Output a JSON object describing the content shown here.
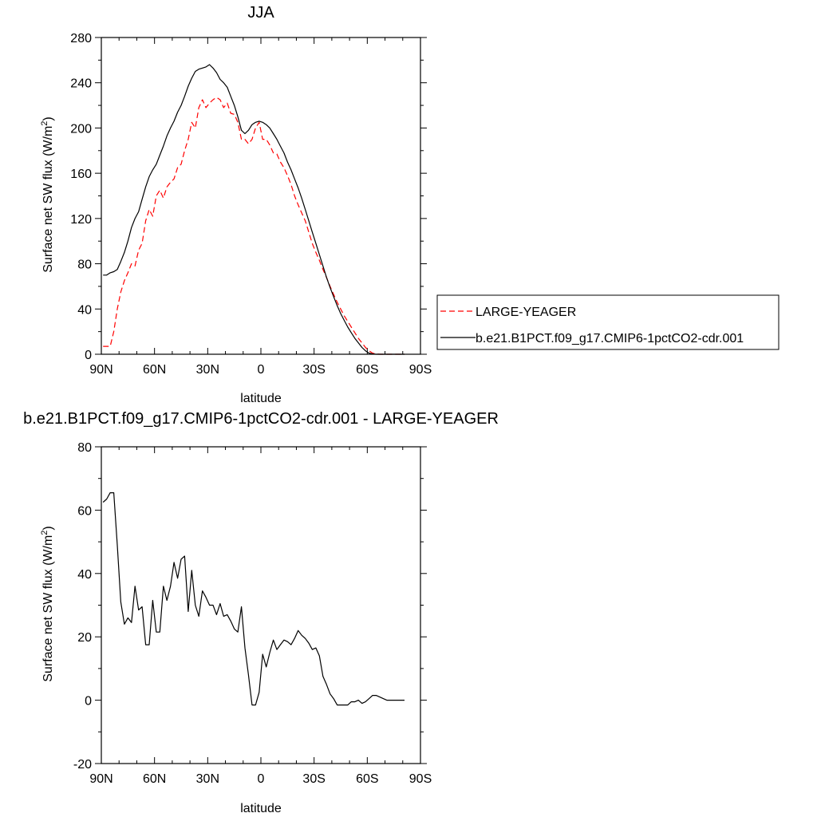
{
  "chart_data": [
    {
      "type": "line",
      "title": "JJA",
      "xlabel": "latitude",
      "ylabel": "Surface net SW flux (W/m",
      "ylabel_sup": "2",
      "ylabel_end": ")",
      "xlim": [
        90,
        -90
      ],
      "ylim": [
        0,
        280
      ],
      "x_ticks": [
        {
          "value": 90,
          "label": "90N"
        },
        {
          "value": 60,
          "label": "60N"
        },
        {
          "value": 30,
          "label": "30N"
        },
        {
          "value": 0,
          "label": "0"
        },
        {
          "value": -30,
          "label": "30S"
        },
        {
          "value": -60,
          "label": "60S"
        },
        {
          "value": -90,
          "label": "90S"
        }
      ],
      "y_ticks": [
        0,
        40,
        80,
        120,
        160,
        200,
        240,
        280
      ],
      "legend_position": "right",
      "series": [
        {
          "name": "LARGE-YEAGER",
          "color": "#ff0000",
          "dash": "dashed",
          "x": [
            89,
            85,
            83,
            81,
            79,
            77,
            75,
            73,
            71,
            69,
            67,
            65,
            63,
            61,
            59,
            57,
            55,
            53,
            51,
            49,
            47,
            45,
            43,
            41,
            39,
            37,
            35,
            33,
            31,
            29,
            27,
            25,
            23,
            21,
            19,
            17,
            15,
            13,
            11,
            9,
            7,
            5,
            3,
            1,
            -1,
            -3,
            -5,
            -7,
            -9,
            -11,
            -13,
            -15,
            -17,
            -19,
            -21,
            -23,
            -25,
            -27,
            -29,
            -31,
            -33,
            -35,
            -37,
            -39,
            -41,
            -43,
            -45,
            -47,
            -49,
            -51,
            -53,
            -55,
            -57,
            -59,
            -61,
            -63,
            -65,
            -67,
            -69,
            -71,
            -73,
            -75,
            -77,
            -79,
            -81
          ],
          "y": [
            7,
            7,
            20,
            40,
            55,
            65,
            72,
            80,
            78,
            92,
            98,
            118,
            128,
            122,
            140,
            145,
            138,
            148,
            152,
            155,
            165,
            168,
            180,
            190,
            205,
            200,
            218,
            225,
            218,
            222,
            225,
            227,
            225,
            218,
            222,
            213,
            212,
            205,
            190,
            190,
            186,
            190,
            200,
            205,
            190,
            190,
            185,
            178,
            177,
            170,
            165,
            158,
            150,
            140,
            132,
            125,
            118,
            108,
            98,
            90,
            83,
            75,
            68,
            60,
            53,
            46,
            40,
            34,
            29,
            24,
            19,
            14,
            10,
            6,
            3,
            1,
            0.3,
            0,
            0,
            0,
            0,
            0,
            0,
            0,
            0
          ]
        },
        {
          "name": "b.e21.B1PCT.f09_g17.CMIP6-1pctCO2-cdr.001",
          "color": "#000000",
          "dash": "solid",
          "x": [
            89,
            87,
            85,
            83,
            81,
            79,
            77,
            75,
            73,
            71,
            69,
            67,
            65,
            63,
            61,
            59,
            57,
            55,
            53,
            51,
            49,
            47,
            45,
            43,
            41,
            39,
            37,
            35,
            33,
            31,
            29,
            27,
            25,
            23,
            21,
            19,
            17,
            15,
            13,
            11,
            9,
            7,
            5,
            3,
            1,
            -1,
            -3,
            -5,
            -7,
            -9,
            -11,
            -13,
            -15,
            -17,
            -19,
            -21,
            -23,
            -25,
            -27,
            -29,
            -31,
            -33,
            -35,
            -37,
            -39,
            -41,
            -43,
            -45,
            -47,
            -49,
            -51,
            -53,
            -55,
            -57,
            -59,
            -61,
            -63,
            -65,
            -67,
            -69,
            -71,
            -73,
            -75,
            -77,
            -79,
            -81
          ],
          "y": [
            70,
            70,
            72,
            73,
            75,
            82,
            90,
            100,
            112,
            120,
            126,
            137,
            148,
            157,
            163,
            168,
            176,
            184,
            193,
            200,
            206,
            214,
            220,
            228,
            237,
            244,
            250,
            252,
            253,
            254,
            256,
            253,
            249,
            243,
            240,
            236,
            228,
            220,
            210,
            198,
            195,
            198,
            203,
            205,
            206,
            205,
            203,
            200,
            195,
            190,
            184,
            178,
            170,
            163,
            155,
            147,
            138,
            128,
            118,
            108,
            98,
            88,
            78,
            68,
            59,
            51,
            43,
            36,
            30,
            24,
            19,
            14,
            10,
            6,
            3,
            1,
            0.3,
            0,
            0,
            0,
            0,
            0,
            0,
            0,
            0,
            0
          ]
        }
      ]
    },
    {
      "type": "line",
      "title": "b.e21.B1PCT.f09_g17.CMIP6-1pctCO2-cdr.001 - LARGE-YEAGER",
      "xlabel": "latitude",
      "ylabel": "Surface net SW flux (W/m",
      "ylabel_sup": "2",
      "ylabel_end": ")",
      "xlim": [
        90,
        -90
      ],
      "ylim": [
        -20,
        80
      ],
      "x_ticks": [
        {
          "value": 90,
          "label": "90N"
        },
        {
          "value": 60,
          "label": "60N"
        },
        {
          "value": 30,
          "label": "30N"
        },
        {
          "value": 0,
          "label": "0"
        },
        {
          "value": -30,
          "label": "30S"
        },
        {
          "value": -60,
          "label": "60S"
        },
        {
          "value": -90,
          "label": "90S"
        }
      ],
      "y_ticks": [
        -20,
        0,
        20,
        40,
        60,
        80
      ],
      "series": [
        {
          "color": "#000000",
          "dash": "solid",
          "x": [
            89,
            87,
            85,
            83,
            81,
            79,
            77,
            75,
            73,
            71,
            69,
            67,
            65,
            63,
            61,
            59,
            57,
            55,
            53,
            51,
            49,
            47,
            45,
            43,
            41,
            39,
            37,
            35,
            33,
            31,
            29,
            27,
            25,
            23,
            21,
            19,
            17,
            15,
            13,
            11,
            9,
            7,
            5,
            3,
            1,
            -1,
            -3,
            -5,
            -7,
            -9,
            -11,
            -13,
            -15,
            -17,
            -19,
            -21,
            -23,
            -25,
            -27,
            -29,
            -31,
            -33,
            -35,
            -37,
            -39,
            -41,
            -43,
            -45,
            -47,
            -49,
            -51,
            -53,
            -55,
            -57,
            -59,
            -61,
            -63,
            -65,
            -67,
            -69,
            -71,
            -73,
            -75,
            -77,
            -79,
            -81
          ],
          "y": [
            62.5,
            63.5,
            65.5,
            65.5,
            49,
            31,
            24,
            26,
            24.5,
            36,
            28.5,
            29.5,
            17.5,
            17.5,
            31.5,
            21.5,
            21.5,
            36,
            31.5,
            36,
            43.5,
            38.5,
            44.5,
            45.5,
            28,
            41,
            30,
            26.5,
            34.5,
            32.5,
            30,
            30,
            27,
            30.5,
            26.5,
            27,
            25,
            22.5,
            21.5,
            29.5,
            16.5,
            8,
            -1.5,
            -1.5,
            2.5,
            14.5,
            10.5,
            15,
            19,
            16,
            17.5,
            19,
            18.5,
            17.5,
            19.5,
            22,
            20.5,
            19.5,
            18,
            16,
            16.5,
            14,
            7.5,
            5,
            2,
            0.5,
            -1.5,
            -1.5,
            -1.5,
            -1.5,
            -0.5,
            -0.5,
            0,
            -1,
            -0.5,
            0.5,
            1.5,
            1.5,
            1,
            0.5,
            0,
            0,
            0,
            0,
            0,
            0
          ]
        }
      ]
    }
  ]
}
